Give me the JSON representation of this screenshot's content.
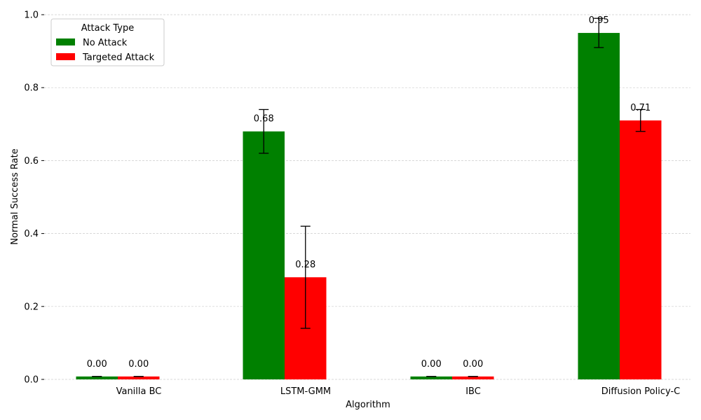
{
  "chart_data": {
    "type": "bar",
    "title": "",
    "xlabel": "Algorithm",
    "ylabel": "Normal Success Rate",
    "ylim": [
      0,
      1.0
    ],
    "yticks": [
      "0.0",
      "0.2",
      "0.4",
      "0.6",
      "0.8",
      "1.0"
    ],
    "grid": "y-dashed",
    "categories": [
      "Vanilla BC",
      "LSTM-GMM",
      "IBC",
      "Diffusion Policy-C"
    ],
    "series": [
      {
        "name": "No Attack",
        "color": "#008000",
        "values": [
          0.0,
          0.68,
          0.0,
          0.95
        ],
        "errors": [
          0.0,
          0.06,
          0.0,
          0.04
        ],
        "labels": [
          "0.00",
          "0.68",
          "0.00",
          "0.95"
        ]
      },
      {
        "name": "Targeted Attack",
        "color": "#ff0000",
        "values": [
          0.0,
          0.28,
          0.0,
          0.71
        ],
        "errors": [
          0.0,
          0.14,
          0.0,
          0.03
        ],
        "labels": [
          "0.00",
          "0.28",
          "0.00",
          "0.71"
        ]
      }
    ],
    "legend": {
      "title": "Attack Type",
      "placement": "top-left"
    }
  }
}
